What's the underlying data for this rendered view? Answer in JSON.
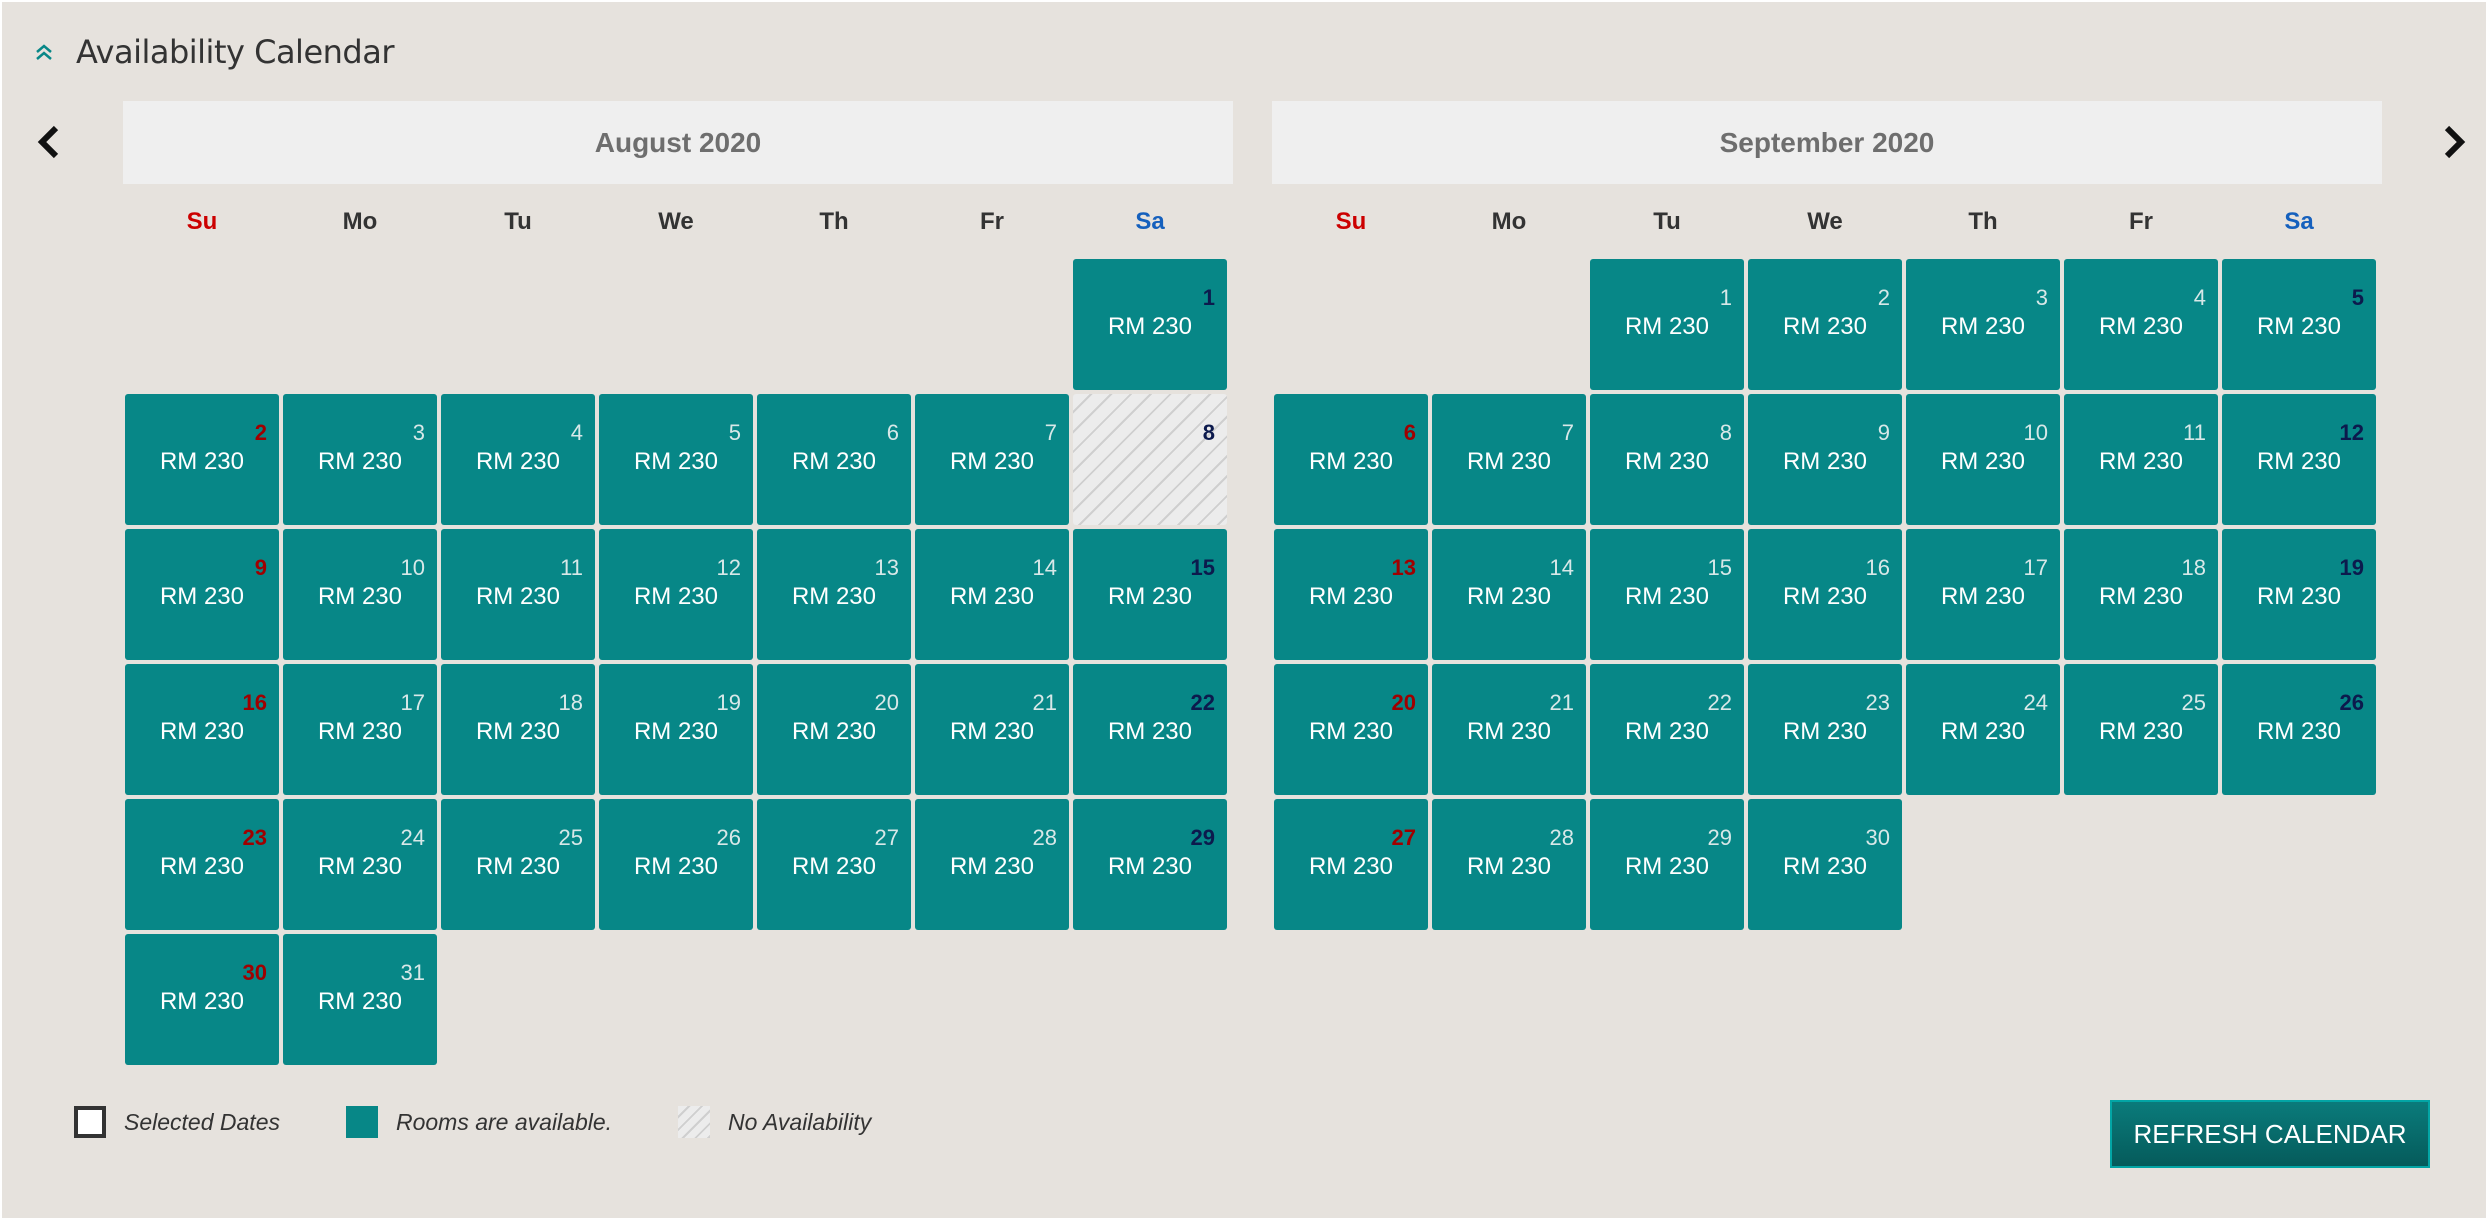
{
  "header": {
    "title": "Availability Calendar",
    "collapse_icon": "double-chevron-up-icon",
    "accent_color": "#078787"
  },
  "nav": {
    "prev_icon": "chevron-left-icon",
    "next_icon": "chevron-right-icon"
  },
  "weekdays": [
    "Su",
    "Mo",
    "Tu",
    "We",
    "Th",
    "Fr",
    "Sa"
  ],
  "months": [
    {
      "title": "August 2020",
      "start_offset": 6,
      "days_in_month": 31,
      "price": "RM 230",
      "unavailable_days": [
        8
      ]
    },
    {
      "title": "September 2020",
      "start_offset": 2,
      "days_in_month": 30,
      "price": "RM 230",
      "unavailable_days": []
    }
  ],
  "legend": {
    "selected_label": "Selected Dates",
    "available_label": "Rooms are available.",
    "none_label": "No Availability"
  },
  "refresh_button": {
    "label": "REFRESH CALENDAR"
  },
  "colors": {
    "available": "#078787",
    "sunday": "#cc0000",
    "saturday": "#1560bd",
    "panel_bg": "#e6e2dd"
  }
}
